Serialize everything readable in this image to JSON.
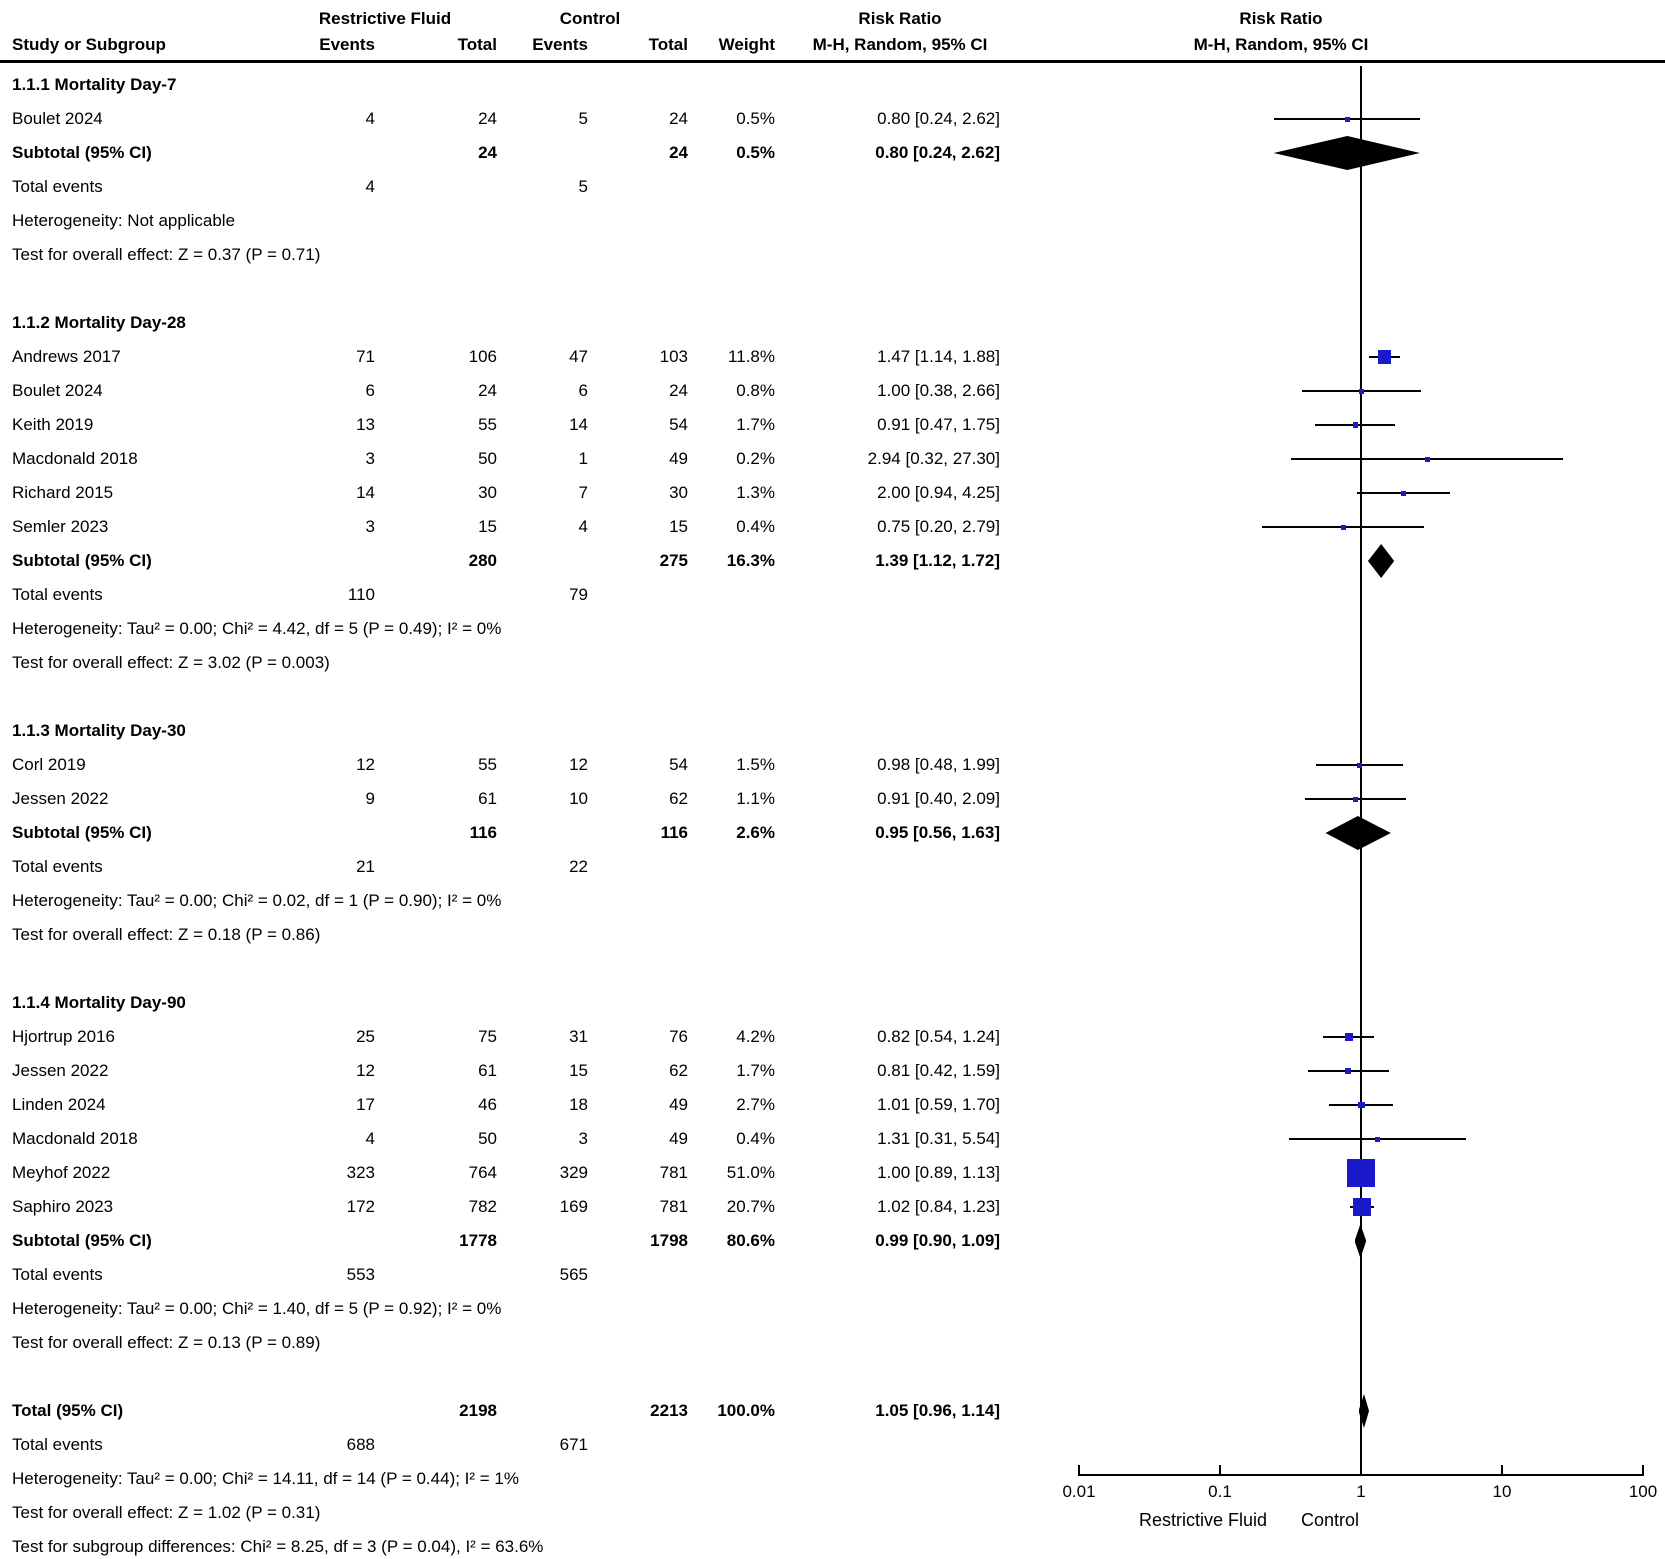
{
  "header": {
    "group1": "Restrictive Fluid",
    "group2": "Control",
    "risk_ratio": "Risk Ratio",
    "method": "M-H, Random, 95% CI",
    "study_col": "Study or Subgroup",
    "events_col": "Events",
    "total_col": "Total",
    "weight_col": "Weight"
  },
  "colors": {
    "marker_blue": "#1a1acb",
    "line_black": "#000000"
  },
  "chart_data": {
    "type": "scatter",
    "variant": "forest-plot",
    "x_scale": "log",
    "x_ticks": [
      "0.01",
      "0.1",
      "1",
      "10",
      "100"
    ],
    "axis_left_label": "Restrictive Fluid",
    "axis_right_label": "Control",
    "groups": [
      {
        "title": "1.1.1 Mortality Day-7",
        "studies": [
          {
            "name": "Boulet 2024",
            "e1": "4",
            "t1": "24",
            "e2": "5",
            "t2": "24",
            "weight": "0.5%",
            "weight_num": 0.5,
            "ci_text": "0.80 [0.24, 2.62]",
            "rr": 0.8,
            "lo": 0.24,
            "hi": 2.62
          }
        ],
        "subtotal": {
          "label": "Subtotal (95% CI)",
          "t1": "24",
          "t2": "24",
          "weight": "0.5%",
          "ci_text": "0.80 [0.24, 2.62]",
          "rr": 0.8,
          "lo": 0.24,
          "hi": 2.62
        },
        "total_events": {
          "label": "Total events",
          "e1": "4",
          "e2": "5"
        },
        "heterogeneity": "Heterogeneity: Not applicable",
        "overall_effect": "Test for overall effect: Z = 0.37 (P = 0.71)"
      },
      {
        "title": "1.1.2 Mortality Day-28",
        "studies": [
          {
            "name": "Andrews 2017",
            "e1": "71",
            "t1": "106",
            "e2": "47",
            "t2": "103",
            "weight": "11.8%",
            "weight_num": 11.8,
            "ci_text": "1.47 [1.14, 1.88]",
            "rr": 1.47,
            "lo": 1.14,
            "hi": 1.88
          },
          {
            "name": "Boulet 2024",
            "e1": "6",
            "t1": "24",
            "e2": "6",
            "t2": "24",
            "weight": "0.8%",
            "weight_num": 0.8,
            "ci_text": "1.00 [0.38, 2.66]",
            "rr": 1.0,
            "lo": 0.38,
            "hi": 2.66
          },
          {
            "name": "Keith 2019",
            "e1": "13",
            "t1": "55",
            "e2": "14",
            "t2": "54",
            "weight": "1.7%",
            "weight_num": 1.7,
            "ci_text": "0.91 [0.47, 1.75]",
            "rr": 0.91,
            "lo": 0.47,
            "hi": 1.75
          },
          {
            "name": "Macdonald 2018",
            "e1": "3",
            "t1": "50",
            "e2": "1",
            "t2": "49",
            "weight": "0.2%",
            "weight_num": 0.2,
            "ci_text": "2.94 [0.32, 27.30]",
            "rr": 2.94,
            "lo": 0.32,
            "hi": 27.3
          },
          {
            "name": "Richard 2015",
            "e1": "14",
            "t1": "30",
            "e2": "7",
            "t2": "30",
            "weight": "1.3%",
            "weight_num": 1.3,
            "ci_text": "2.00 [0.94, 4.25]",
            "rr": 2.0,
            "lo": 0.94,
            "hi": 4.25
          },
          {
            "name": "Semler 2023",
            "e1": "3",
            "t1": "15",
            "e2": "4",
            "t2": "15",
            "weight": "0.4%",
            "weight_num": 0.4,
            "ci_text": "0.75 [0.20, 2.79]",
            "rr": 0.75,
            "lo": 0.2,
            "hi": 2.79
          }
        ],
        "subtotal": {
          "label": "Subtotal (95% CI)",
          "t1": "280",
          "t2": "275",
          "weight": "16.3%",
          "ci_text": "1.39 [1.12, 1.72]",
          "rr": 1.39,
          "lo": 1.12,
          "hi": 1.72
        },
        "total_events": {
          "label": "Total events",
          "e1": "110",
          "e2": "79"
        },
        "heterogeneity": "Heterogeneity: Tau² = 0.00; Chi² = 4.42, df = 5 (P = 0.49); I² = 0%",
        "overall_effect": "Test for overall effect: Z = 3.02 (P = 0.003)"
      },
      {
        "title": "1.1.3 Mortality Day-30",
        "studies": [
          {
            "name": "Corl 2019",
            "e1": "12",
            "t1": "55",
            "e2": "12",
            "t2": "54",
            "weight": "1.5%",
            "weight_num": 1.5,
            "ci_text": "0.98 [0.48, 1.99]",
            "rr": 0.98,
            "lo": 0.48,
            "hi": 1.99
          },
          {
            "name": "Jessen 2022",
            "e1": "9",
            "t1": "61",
            "e2": "10",
            "t2": "62",
            "weight": "1.1%",
            "weight_num": 1.1,
            "ci_text": "0.91 [0.40, 2.09]",
            "rr": 0.91,
            "lo": 0.4,
            "hi": 2.09
          }
        ],
        "subtotal": {
          "label": "Subtotal (95% CI)",
          "t1": "116",
          "t2": "116",
          "weight": "2.6%",
          "ci_text": "0.95 [0.56, 1.63]",
          "rr": 0.95,
          "lo": 0.56,
          "hi": 1.63
        },
        "total_events": {
          "label": "Total events",
          "e1": "21",
          "e2": "22"
        },
        "heterogeneity": "Heterogeneity: Tau² = 0.00; Chi² = 0.02, df = 1 (P = 0.90); I² = 0%",
        "overall_effect": "Test for overall effect: Z = 0.18 (P = 0.86)"
      },
      {
        "title": "1.1.4 Mortality Day-90",
        "studies": [
          {
            "name": "Hjortrup 2016",
            "e1": "25",
            "t1": "75",
            "e2": "31",
            "t2": "76",
            "weight": "4.2%",
            "weight_num": 4.2,
            "ci_text": "0.82 [0.54, 1.24]",
            "rr": 0.82,
            "lo": 0.54,
            "hi": 1.24
          },
          {
            "name": "Jessen 2022",
            "e1": "12",
            "t1": "61",
            "e2": "15",
            "t2": "62",
            "weight": "1.7%",
            "weight_num": 1.7,
            "ci_text": "0.81 [0.42, 1.59]",
            "rr": 0.81,
            "lo": 0.42,
            "hi": 1.59
          },
          {
            "name": "Linden 2024",
            "e1": "17",
            "t1": "46",
            "e2": "18",
            "t2": "49",
            "weight": "2.7%",
            "weight_num": 2.7,
            "ci_text": "1.01 [0.59, 1.70]",
            "rr": 1.01,
            "lo": 0.59,
            "hi": 1.7
          },
          {
            "name": "Macdonald 2018",
            "e1": "4",
            "t1": "50",
            "e2": "3",
            "t2": "49",
            "weight": "0.4%",
            "weight_num": 0.4,
            "ci_text": "1.31 [0.31, 5.54]",
            "rr": 1.31,
            "lo": 0.31,
            "hi": 5.54
          },
          {
            "name": "Meyhof 2022",
            "e1": "323",
            "t1": "764",
            "e2": "329",
            "t2": "781",
            "weight": "51.0%",
            "weight_num": 51.0,
            "ci_text": "1.00 [0.89, 1.13]",
            "rr": 1.0,
            "lo": 0.89,
            "hi": 1.13
          },
          {
            "name": "Saphiro 2023",
            "e1": "172",
            "t1": "782",
            "e2": "169",
            "t2": "781",
            "weight": "20.7%",
            "weight_num": 20.7,
            "ci_text": "1.02 [0.84, 1.23]",
            "rr": 1.02,
            "lo": 0.84,
            "hi": 1.23
          }
        ],
        "subtotal": {
          "label": "Subtotal (95% CI)",
          "t1": "1778",
          "t2": "1798",
          "weight": "80.6%",
          "ci_text": "0.99 [0.90, 1.09]",
          "rr": 0.99,
          "lo": 0.9,
          "hi": 1.09
        },
        "total_events": {
          "label": "Total events",
          "e1": "553",
          "e2": "565"
        },
        "heterogeneity": "Heterogeneity: Tau² = 0.00; Chi² = 1.40, df = 5 (P = 0.92); I² = 0%",
        "overall_effect": "Test for overall effect: Z = 0.13 (P = 0.89)"
      }
    ],
    "total": {
      "row": {
        "label": "Total (95% CI)",
        "t1": "2198",
        "t2": "2213",
        "weight": "100.0%",
        "ci_text": "1.05 [0.96, 1.14]",
        "rr": 1.05,
        "lo": 0.96,
        "hi": 1.14
      },
      "total_events": {
        "label": "Total events",
        "e1": "688",
        "e2": "671"
      },
      "heterogeneity": "Heterogeneity: Tau² = 0.00; Chi² = 14.11, df = 14 (P = 0.44); I² = 1%",
      "overall_effect": "Test for overall effect: Z = 1.02 (P = 0.31)",
      "subgroup_differences": "Test for subgroup differences: Chi² = 8.25, df = 3 (P = 0.04), I² = 63.6%"
    }
  }
}
